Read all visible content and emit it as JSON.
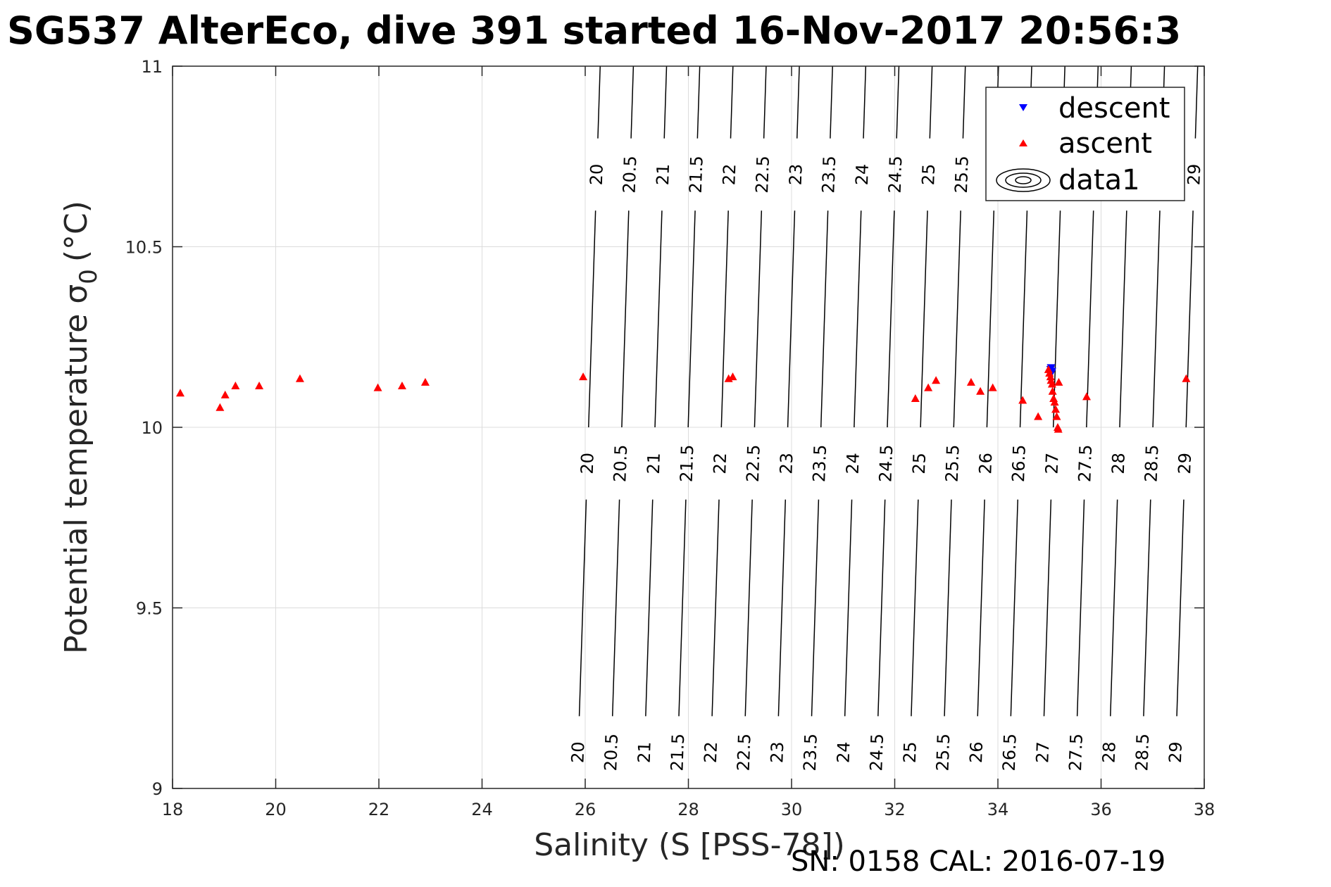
{
  "chart_data": {
    "type": "scatter",
    "title": "SG537 AlterEco, dive 391 started 16-Nov-2017 20:56:3",
    "xlabel": "Salinity (S [PSS-78])",
    "ylabel_main": "Potential temperature σ",
    "ylabel_sub": "0",
    "ylabel_unit": "(°C)",
    "xlim": [
      18,
      38
    ],
    "ylim": [
      9,
      11
    ],
    "xticks": [
      18,
      20,
      22,
      24,
      26,
      28,
      30,
      32,
      34,
      36,
      38
    ],
    "yticks": [
      9,
      9.5,
      10,
      10.5,
      11
    ],
    "ytick_labels": [
      "9",
      "9.5",
      "10",
      "10.5",
      "11"
    ],
    "grid": true,
    "legend_position": "top-right",
    "footer": "SN: 0158  CAL: 2016-07-19",
    "series": [
      {
        "name": "descent",
        "marker": "triangle-down",
        "color": "#0000ff",
        "points": [
          [
            35.03,
            10.165
          ],
          [
            35.05,
            10.155
          ],
          [
            35.02,
            10.16
          ],
          [
            35.04,
            10.15
          ]
        ]
      },
      {
        "name": "ascent",
        "marker": "triangle-up",
        "color": "#ff0000",
        "points": [
          [
            18.15,
            10.095
          ],
          [
            18.92,
            10.055
          ],
          [
            19.02,
            10.09
          ],
          [
            19.22,
            10.115
          ],
          [
            19.68,
            10.115
          ],
          [
            20.47,
            10.135
          ],
          [
            21.98,
            10.11
          ],
          [
            22.45,
            10.115
          ],
          [
            22.9,
            10.125
          ],
          [
            25.96,
            10.14
          ],
          [
            28.78,
            10.135
          ],
          [
            28.86,
            10.14
          ],
          [
            32.4,
            10.08
          ],
          [
            32.65,
            10.11
          ],
          [
            32.8,
            10.13
          ],
          [
            33.48,
            10.125
          ],
          [
            33.66,
            10.1
          ],
          [
            33.9,
            10.11
          ],
          [
            34.48,
            10.075
          ],
          [
            34.78,
            10.03
          ],
          [
            34.98,
            10.16
          ],
          [
            35.0,
            10.15
          ],
          [
            35.02,
            10.14
          ],
          [
            35.03,
            10.13
          ],
          [
            35.05,
            10.12
          ],
          [
            35.06,
            10.1
          ],
          [
            35.08,
            10.08
          ],
          [
            35.1,
            10.07
          ],
          [
            35.12,
            10.05
          ],
          [
            35.14,
            10.03
          ],
          [
            35.16,
            10.0
          ],
          [
            35.17,
            9.995
          ],
          [
            35.18,
            10.125
          ],
          [
            35.72,
            10.085
          ],
          [
            37.65,
            10.135
          ]
        ]
      },
      {
        "name": "data1",
        "marker": "contour",
        "color": "#000000",
        "contour_levels": [
          20,
          20.5,
          21,
          21.5,
          22,
          22.5,
          23,
          23.5,
          24,
          24.5,
          25,
          25.5,
          26,
          26.5,
          27,
          27.5,
          28,
          28.5,
          29
        ],
        "contour_label_texts": [
          "20",
          "20.5",
          "21",
          "21.5",
          "22",
          "22.5",
          "23",
          "23.5",
          "24",
          "24.5",
          "25",
          "25.5",
          "26",
          "26.5",
          "27",
          "27.5",
          "28",
          "28.5",
          "29"
        ],
        "contour_label_bands_y": [
          9.1,
          9.9,
          10.7
        ],
        "contour_top_visible_levels": [
          "20",
          "20.5",
          "21",
          "21.5",
          "22",
          "22.5",
          "23",
          "23.5",
          "24",
          "24.5",
          "25",
          "25.5",
          "29"
        ]
      }
    ]
  }
}
